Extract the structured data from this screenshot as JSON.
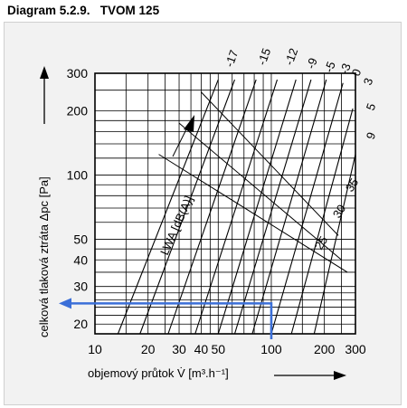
{
  "title": "Diagram 5.2.9.   TVOM 125",
  "chart_data": {
    "type": "line",
    "xlabel": "objemový průtok V̇ [m³.h⁻¹]",
    "ylabel": "celková tlaková ztráta Δpc [Pa]",
    "x_scale": "log",
    "y_scale": "log",
    "xlim": [
      10,
      300
    ],
    "ylim": [
      18,
      300
    ],
    "x_ticks": [
      10,
      20,
      30,
      40,
      50,
      100,
      200,
      300
    ],
    "y_ticks": [
      20,
      30,
      40,
      50,
      100,
      200,
      300
    ],
    "x_grid": [
      10,
      15,
      20,
      25,
      30,
      35,
      40,
      45,
      50,
      60,
      70,
      80,
      90,
      100,
      150,
      200,
      250,
      300
    ],
    "y_grid": [
      18,
      20,
      22,
      24,
      26,
      28,
      30,
      35,
      40,
      45,
      50,
      60,
      70,
      80,
      90,
      100,
      120,
      140,
      160,
      180,
      200,
      250,
      300
    ],
    "damper_positions": [
      "-17",
      "-15",
      "-12",
      "-9",
      "-5",
      "-3",
      "0",
      "3",
      "5",
      "9"
    ],
    "damper_lines": [
      {
        "label": "-17",
        "x": [
          13.5,
          50
        ],
        "y": [
          18,
          280
        ]
      },
      {
        "label": "-15",
        "x": [
          18,
          62
        ],
        "y": [
          18,
          280
        ]
      },
      {
        "label": "-12",
        "x": [
          26,
          82
        ],
        "y": [
          18,
          280
        ]
      },
      {
        "label": "-9",
        "x": [
          37,
          108
        ],
        "y": [
          18,
          280
        ]
      },
      {
        "label": "-5",
        "x": [
          50,
          138
        ],
        "y": [
          18,
          280
        ]
      },
      {
        "label": "-3",
        "x": [
          62,
          168
        ],
        "y": [
          18,
          280
        ]
      },
      {
        "label": "0",
        "x": [
          78,
          205
        ],
        "y": [
          18,
          280
        ]
      },
      {
        "label": "3",
        "x": [
          100,
          255
        ],
        "y": [
          18,
          270
        ]
      },
      {
        "label": "5",
        "x": [
          130,
          290
        ],
        "y": [
          18,
          205
        ]
      },
      {
        "label": "9",
        "x": [
          175,
          300
        ],
        "y": [
          18,
          125
        ]
      }
    ],
    "noise_label": "LWA [dB(A)]",
    "noise_levels": [
      "25",
      "30",
      "35"
    ],
    "noise_lines": [
      {
        "x": [
          40,
          240
        ],
        "y": [
          245,
          52
        ]
      },
      {
        "x": [
          30,
          250
        ],
        "y": [
          175,
          40
        ]
      },
      {
        "x": [
          23,
          270
        ],
        "y": [
          125,
          35
        ]
      }
    ],
    "example": {
      "x": 100,
      "y": 25
    }
  }
}
